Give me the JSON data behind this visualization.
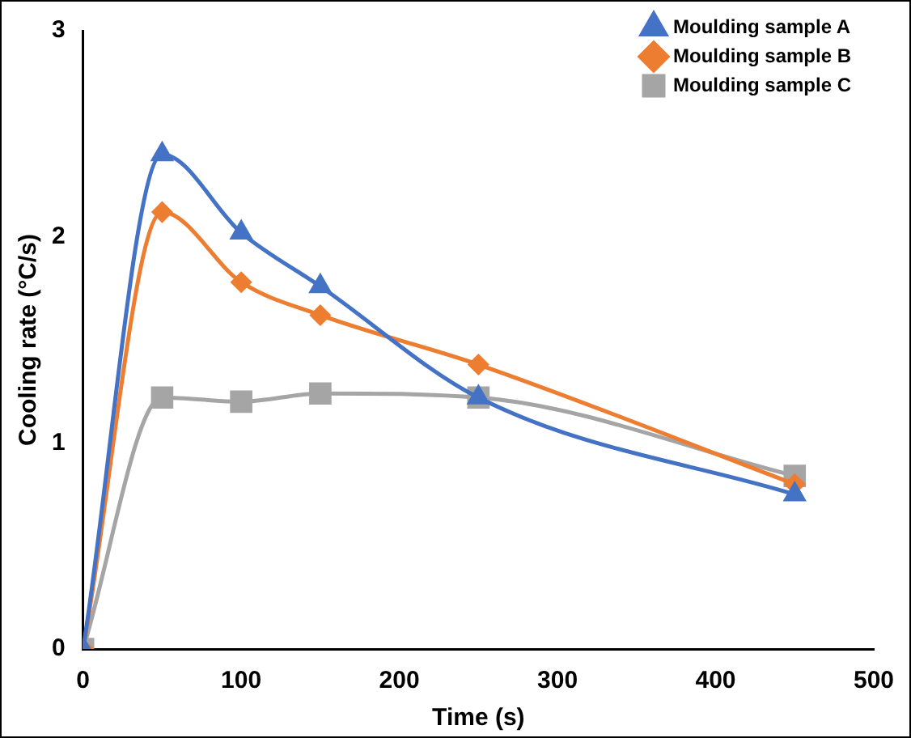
{
  "chart_data": {
    "type": "line",
    "xlabel": "Time (s)",
    "ylabel": "Cooling rate (°C/s)",
    "x": [
      0,
      50,
      100,
      150,
      250,
      450
    ],
    "series": [
      {
        "name": "Moulding sample A",
        "color": "#4472c4",
        "marker": "triangle",
        "values": [
          0,
          2.4,
          2.02,
          1.76,
          1.22,
          0.75
        ]
      },
      {
        "name": "Moulding sample B",
        "color": "#ed7d31",
        "marker": "diamond",
        "values": [
          0,
          2.12,
          1.78,
          1.62,
          1.38,
          0.8
        ]
      },
      {
        "name": "Moulding sample C",
        "color": "#a5a5a5",
        "marker": "square",
        "values": [
          0,
          1.22,
          1.2,
          1.24,
          1.22,
          0.84
        ]
      }
    ],
    "xlim": [
      0,
      500
    ],
    "xticks": [
      0,
      100,
      200,
      300,
      400,
      500
    ],
    "ylim": [
      0,
      3
    ],
    "yticks": [
      0,
      1,
      2,
      3
    ],
    "grid": false,
    "legend": "top right"
  }
}
